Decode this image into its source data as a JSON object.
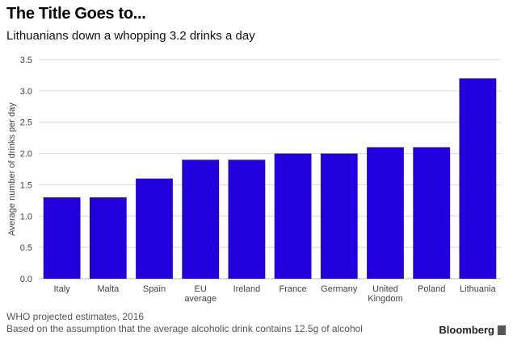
{
  "header": {
    "title": "The Title Goes to...",
    "subtitle": "Lithuanians down a whopping 3.2 drinks a day"
  },
  "footer": {
    "source": "WHO projected estimates, 2016",
    "note": "Based on the assumption that the average alcoholic drink contains 12.5g of alcohol",
    "brand": "Bloomberg"
  },
  "colors": {
    "bar": "#2200dd",
    "grid": "#d8d8d8"
  },
  "chart_data": {
    "type": "bar",
    "title": "The Title Goes to...",
    "subtitle": "Lithuanians down a whopping 3.2 drinks a day",
    "xlabel": "",
    "ylabel": "Average number of drinks per day",
    "ylim": [
      0,
      3.5
    ],
    "yticks": [
      "0.0",
      "0.5",
      "1.0",
      "1.5",
      "2.0",
      "2.5",
      "3.0",
      "3.5"
    ],
    "grid": true,
    "categories": [
      [
        "Italy"
      ],
      [
        "Malta"
      ],
      [
        "Spain"
      ],
      [
        "EU",
        "average"
      ],
      [
        "Ireland"
      ],
      [
        "France"
      ],
      [
        "Germany"
      ],
      [
        "United",
        "Kingdom"
      ],
      [
        "Poland"
      ],
      [
        "Lithuania"
      ]
    ],
    "values": [
      1.3,
      1.3,
      1.6,
      1.9,
      1.9,
      2.0,
      2.0,
      2.1,
      2.1,
      3.2
    ]
  }
}
